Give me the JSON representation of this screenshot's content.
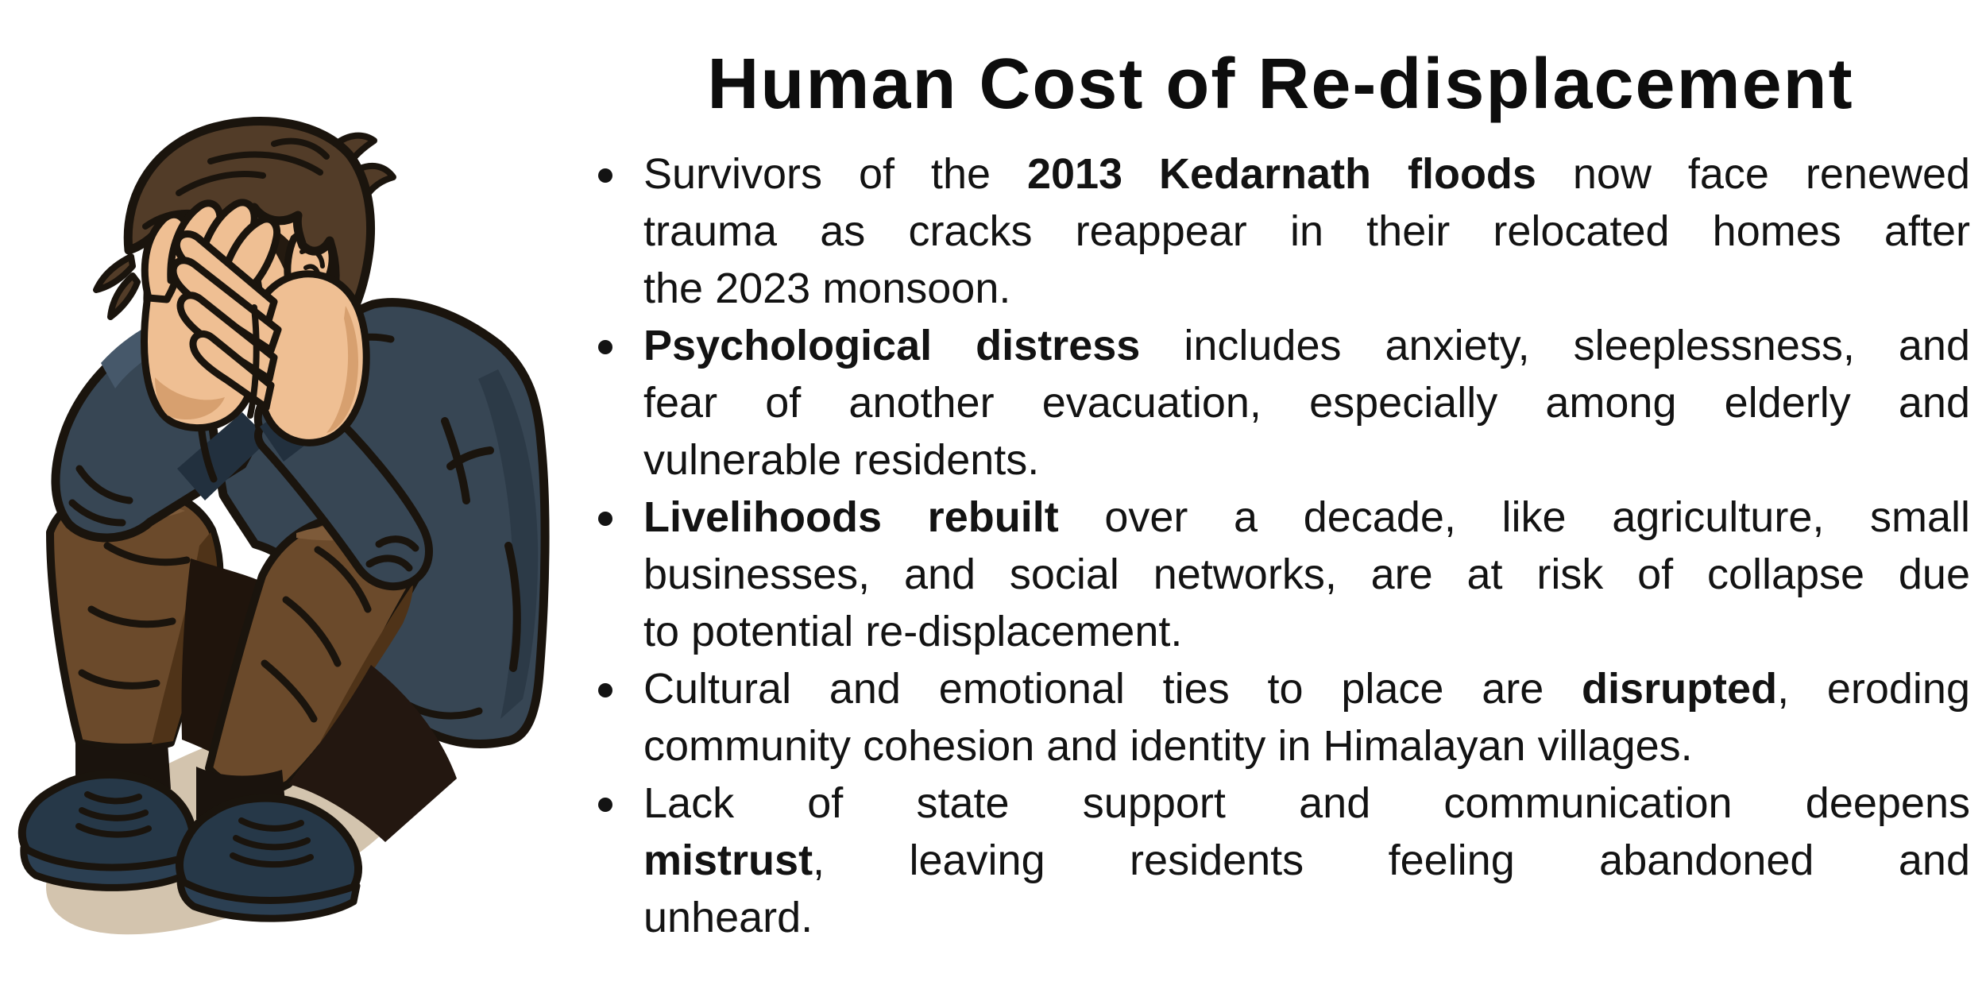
{
  "title": "Human Cost of Re-displacement",
  "text_color": "#131313",
  "background": "#ffffff",
  "bullets": [
    {
      "lines": [
        [
          {
            "t": "Survivors of the ",
            "b": false
          },
          {
            "t": "2013 Kedarnath floods",
            "b": true
          },
          {
            "t": " now face renewed",
            "b": false
          }
        ],
        [
          {
            "t": "trauma as cracks reappear in their relocated homes after",
            "b": false
          }
        ],
        [
          {
            "t": "the 2023 monsoon.",
            "b": false
          }
        ]
      ]
    },
    {
      "lines": [
        [
          {
            "t": "Psychological distress",
            "b": true
          },
          {
            "t": " includes anxiety, sleeplessness, and",
            "b": false
          }
        ],
        [
          {
            "t": "fear of another evacuation, especially among elderly and",
            "b": false
          }
        ],
        [
          {
            "t": "vulnerable residents.",
            "b": false
          }
        ]
      ]
    },
    {
      "lines": [
        [
          {
            "t": "Livelihoods rebuilt",
            "b": true
          },
          {
            "t": " over a decade, like agriculture, small",
            "b": false
          }
        ],
        [
          {
            "t": "businesses, and social networks, are at risk of collapse due",
            "b": false
          }
        ],
        [
          {
            "t": "to potential re-displacement.",
            "b": false
          }
        ]
      ]
    },
    {
      "lines": [
        [
          {
            "t": "Cultural and emotional ties to place are ",
            "b": false
          },
          {
            "t": "disrupted",
            "b": true
          },
          {
            "t": ", eroding",
            "b": false
          }
        ],
        [
          {
            "t": "community cohesion and identity in Himalayan villages.",
            "b": false
          }
        ]
      ]
    },
    {
      "lines": [
        [
          {
            "t": "Lack of state support and communication deepens",
            "b": false
          }
        ],
        [
          {
            "t": "mistrust",
            "b": true
          },
          {
            "t": ", leaving residents feeling abandoned and",
            "b": false
          }
        ],
        [
          {
            "t": "unheard.",
            "b": false
          }
        ]
      ]
    }
  ],
  "illustration": {
    "description": "Distressed man sitting on the ground covering his face with both hands",
    "colors": {
      "sweater": "#374654",
      "pants": "#6b4a2b",
      "skin": "#efbf93",
      "hair": "#523c28",
      "shoes": "#263848",
      "shadow": "#d3c4ae",
      "outline": "#1a140d"
    }
  }
}
